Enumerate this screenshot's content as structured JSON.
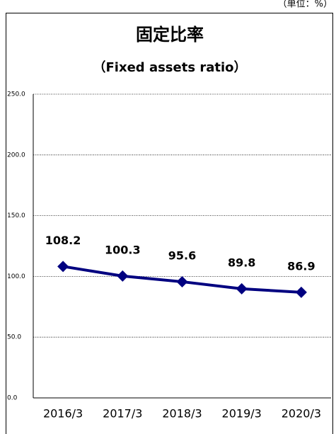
{
  "chart_data": {
    "type": "line",
    "title": "固定比率",
    "subtitle": "（Fixed assets ratio）",
    "unit": "（単位：%）",
    "categories": [
      "2016/3",
      "2017/3",
      "2018/3",
      "2019/3",
      "2020/3"
    ],
    "series": [
      {
        "name": "固定比率",
        "color": "#000080",
        "values": [
          108.2,
          100.3,
          95.6,
          89.8,
          86.9
        ]
      }
    ],
    "ylim": [
      0,
      250
    ],
    "yticks": [
      {
        "value": 0,
        "label": "0.0"
      },
      {
        "value": 50,
        "label": "50.0"
      },
      {
        "value": 100,
        "label": "100.0"
      },
      {
        "value": 150,
        "label": "150.0"
      },
      {
        "value": 200,
        "label": "200.0"
      },
      {
        "value": 250,
        "label": "250.0"
      }
    ],
    "grid": true
  }
}
